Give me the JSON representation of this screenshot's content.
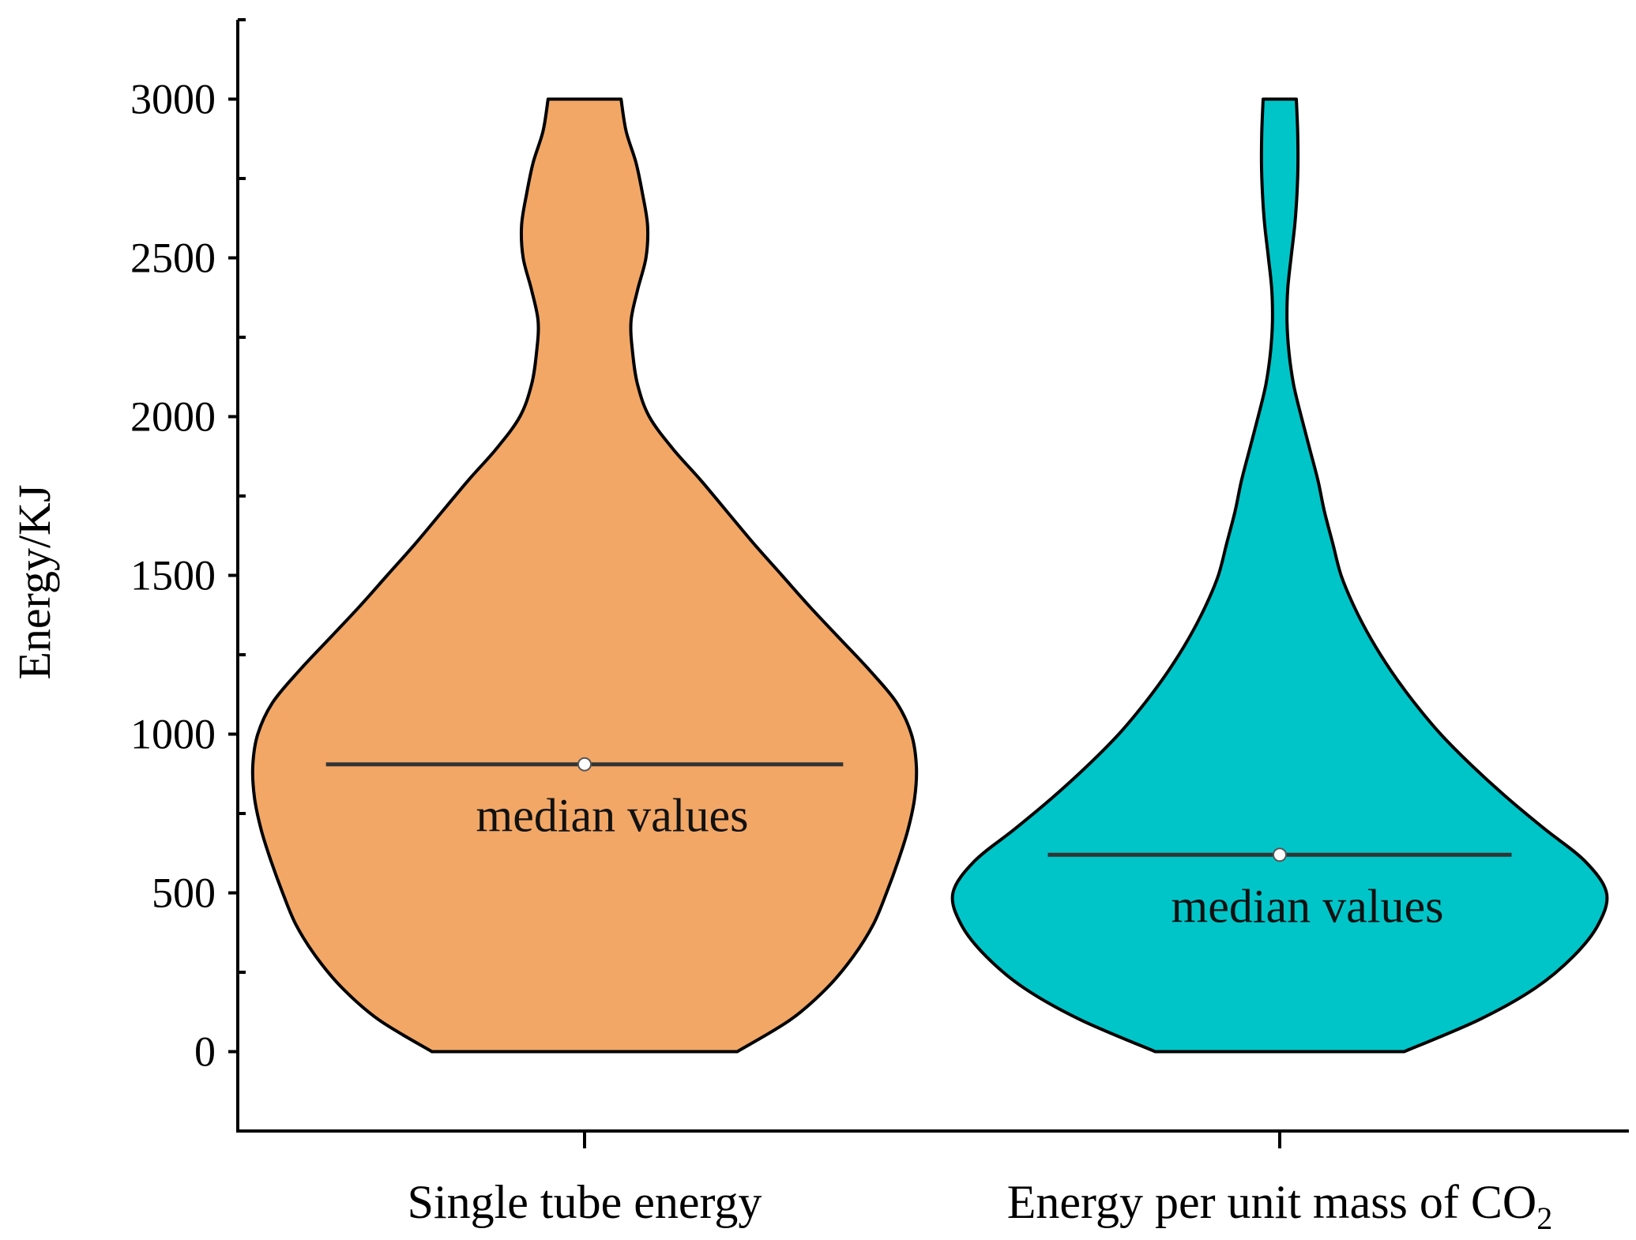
{
  "chart_data": {
    "type": "violin",
    "ylabel": "Energy/KJ",
    "xlabel": "",
    "ylim": [
      -250,
      3250
    ],
    "yticks": [
      0,
      500,
      1000,
      1500,
      2000,
      2500,
      3000
    ],
    "yminor_step": 250,
    "annotation_text": "median values",
    "series": [
      {
        "name": "Single tube energy",
        "tick_label_main": "Single tube energy",
        "tick_label_sub": "",
        "color": "#F2A766",
        "median": 905,
        "data_min": 0,
        "data_max": 3000,
        "density_profile": [
          [
            0,
            0.46
          ],
          [
            100,
            0.62
          ],
          [
            200,
            0.73
          ],
          [
            300,
            0.81
          ],
          [
            400,
            0.87
          ],
          [
            500,
            0.91
          ],
          [
            600,
            0.945
          ],
          [
            700,
            0.975
          ],
          [
            800,
            0.995
          ],
          [
            900,
            1.0
          ],
          [
            1000,
            0.985
          ],
          [
            1100,
            0.94
          ],
          [
            1200,
            0.86
          ],
          [
            1300,
            0.77
          ],
          [
            1400,
            0.68
          ],
          [
            1500,
            0.595
          ],
          [
            1600,
            0.51
          ],
          [
            1700,
            0.43
          ],
          [
            1800,
            0.35
          ],
          [
            1900,
            0.265
          ],
          [
            2000,
            0.195
          ],
          [
            2100,
            0.16
          ],
          [
            2200,
            0.145
          ],
          [
            2300,
            0.14
          ],
          [
            2400,
            0.16
          ],
          [
            2500,
            0.185
          ],
          [
            2600,
            0.19
          ],
          [
            2700,
            0.175
          ],
          [
            2800,
            0.155
          ],
          [
            2900,
            0.125
          ],
          [
            3000,
            0.11
          ]
        ]
      },
      {
        "name": "Energy per unit mass of CO2",
        "tick_label_main": "Energy per unit mass of CO",
        "tick_label_sub": "2",
        "color": "#00C5C8",
        "median": 620,
        "data_min": 0,
        "data_max": 3000,
        "density_profile": [
          [
            0,
            0.375
          ],
          [
            100,
            0.6
          ],
          [
            200,
            0.77
          ],
          [
            300,
            0.885
          ],
          [
            400,
            0.96
          ],
          [
            500,
            0.985
          ],
          [
            600,
            0.92
          ],
          [
            700,
            0.8
          ],
          [
            800,
            0.685
          ],
          [
            900,
            0.58
          ],
          [
            1000,
            0.485
          ],
          [
            1100,
            0.405
          ],
          [
            1200,
            0.335
          ],
          [
            1300,
            0.275
          ],
          [
            1400,
            0.225
          ],
          [
            1500,
            0.185
          ],
          [
            1600,
            0.16
          ],
          [
            1700,
            0.135
          ],
          [
            1800,
            0.115
          ],
          [
            1900,
            0.09
          ],
          [
            2000,
            0.065
          ],
          [
            2100,
            0.042
          ],
          [
            2200,
            0.028
          ],
          [
            2300,
            0.022
          ],
          [
            2400,
            0.024
          ],
          [
            2500,
            0.034
          ],
          [
            2600,
            0.045
          ],
          [
            2700,
            0.052
          ],
          [
            2800,
            0.055
          ],
          [
            2900,
            0.054
          ],
          [
            3000,
            0.05
          ]
        ]
      }
    ]
  }
}
